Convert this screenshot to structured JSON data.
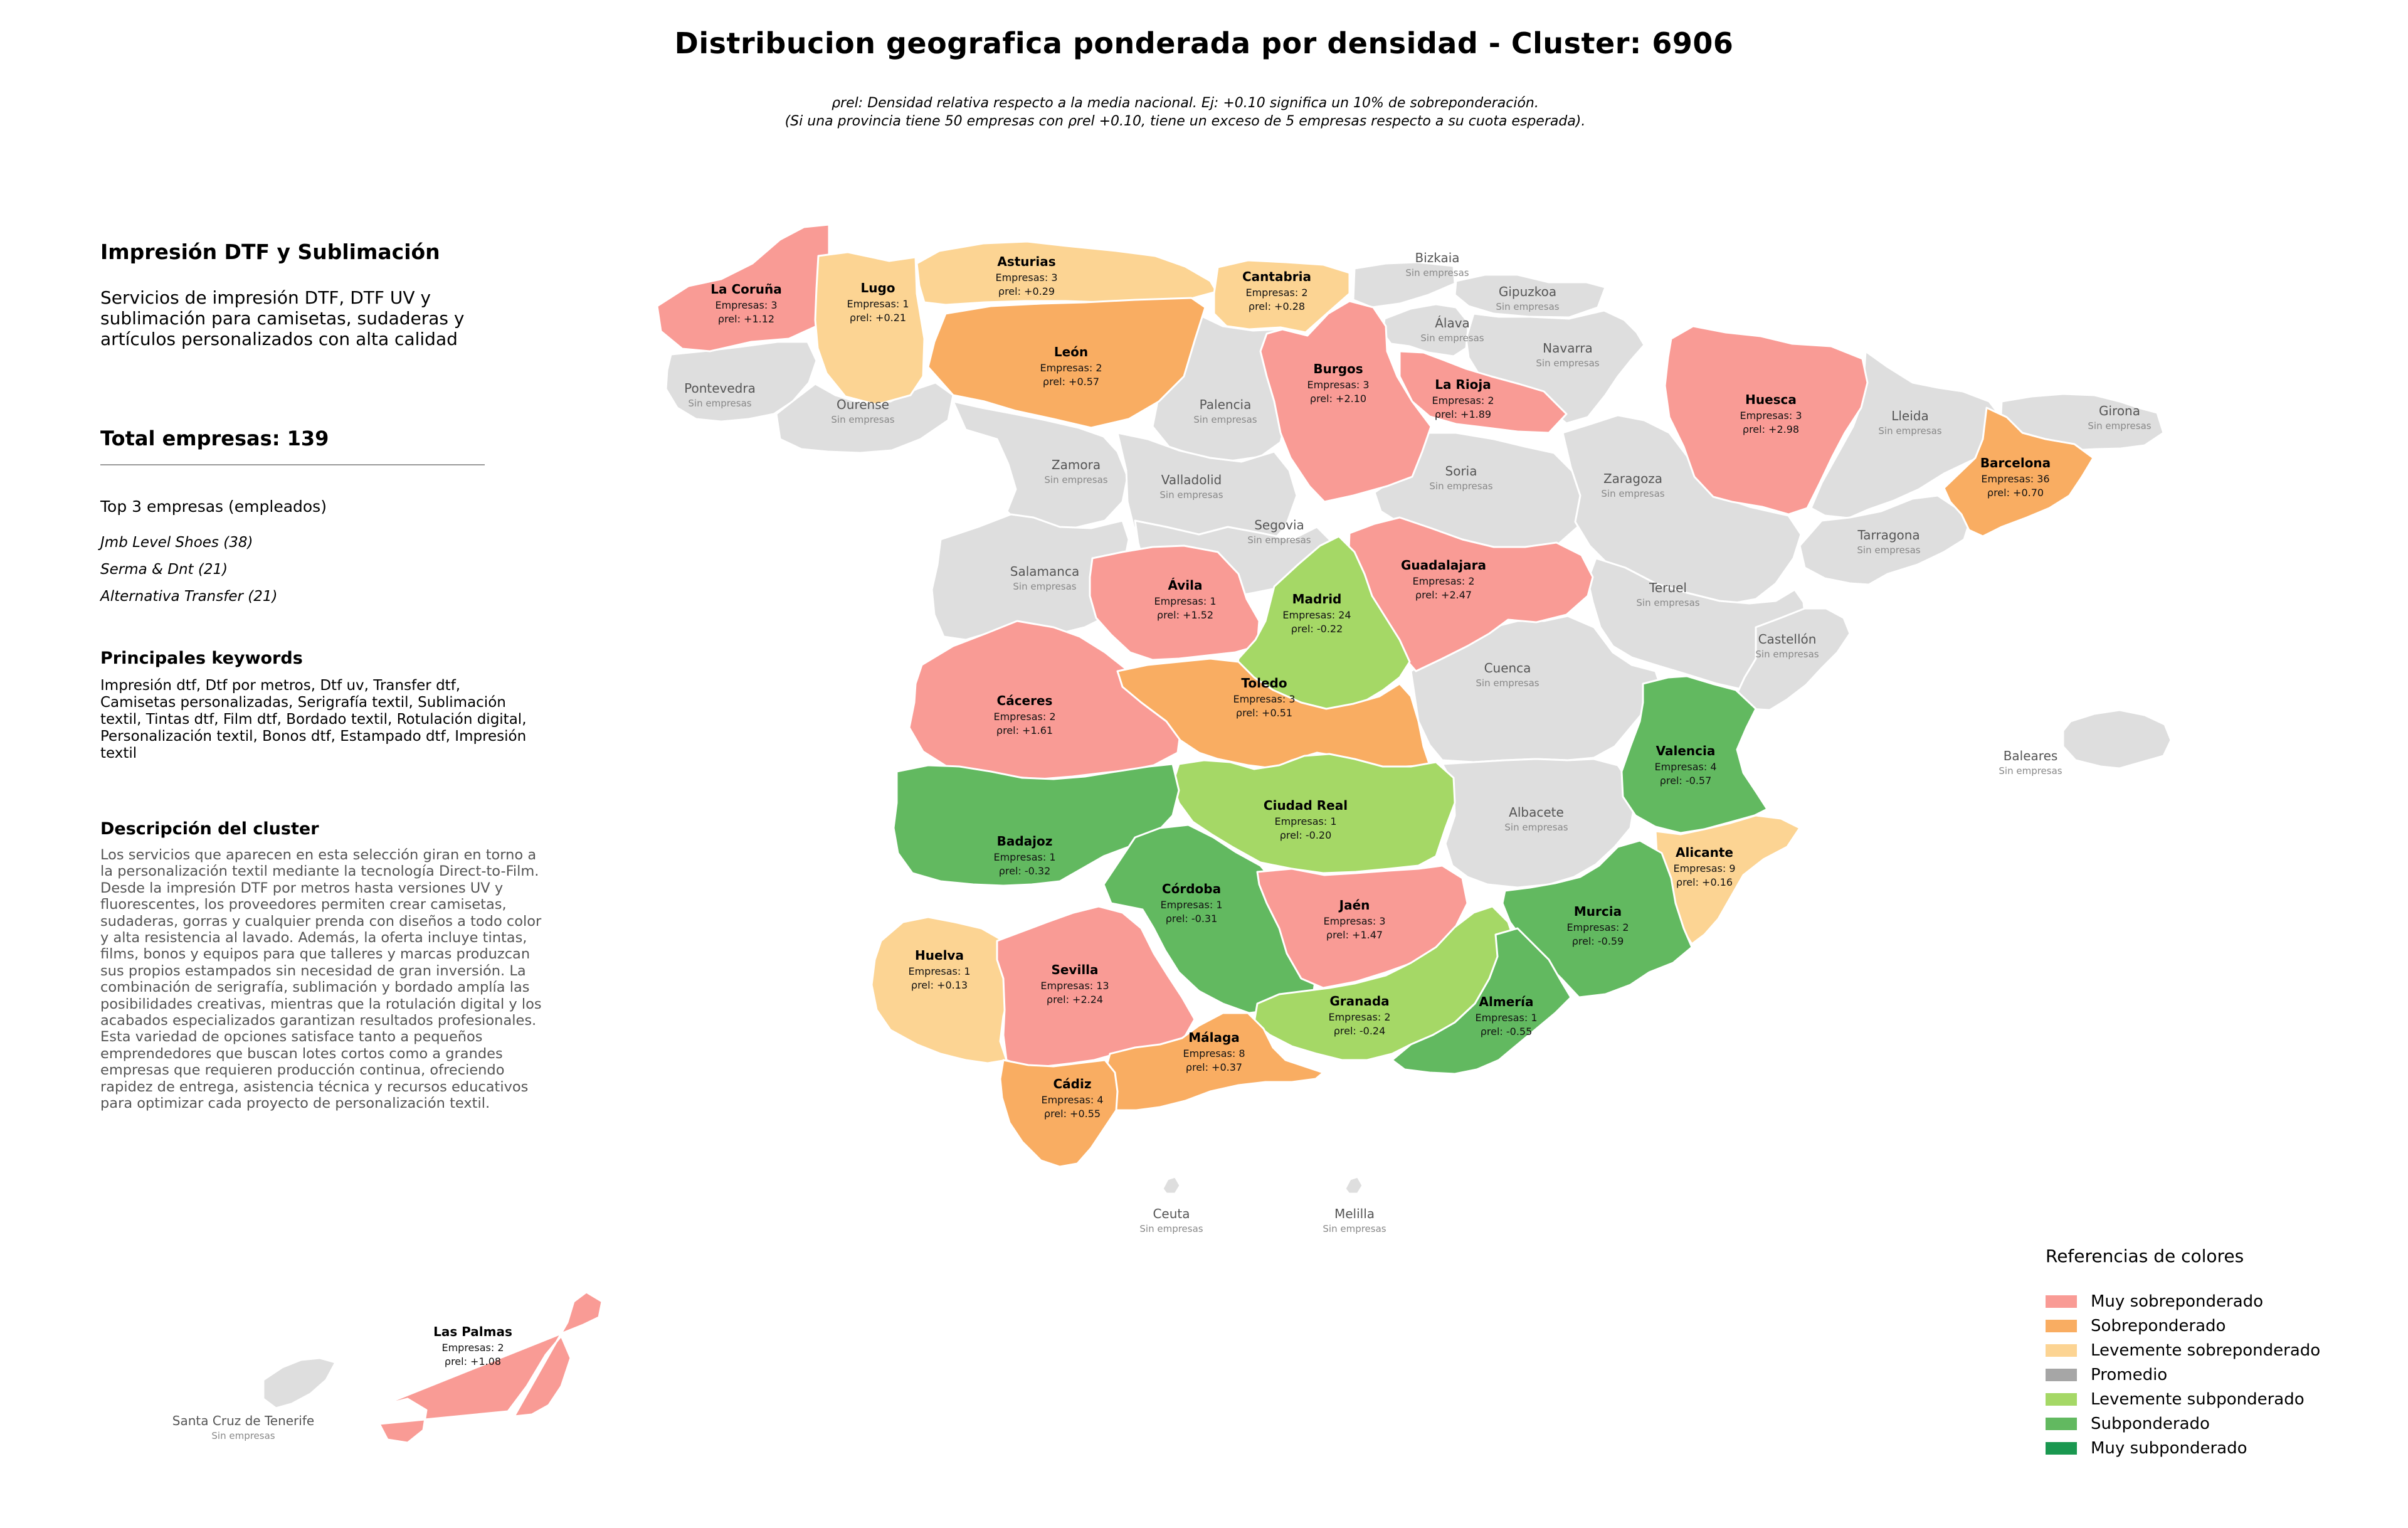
{
  "title": "Distribucion geografica ponderada por densidad - Cluster: 6906",
  "subtitle": {
    "line1": "ρrel: Densidad relativa respecto a la media nacional. Ej: +0.10 significa un 10% de sobreponderación.",
    "line2": "(Si una provincia tiene 50 empresas con ρrel +0.10, tiene un exceso de 5 empresas respecto a su cuota esperada)."
  },
  "sidebar": {
    "heading": "Impresión DTF y Sublimación",
    "description": "Servicios de impresión DTF, DTF UV y sublimación para camisetas, sudaderas y artículos personalizados con alta calidad",
    "total": "Total empresas: 139",
    "top3_title": "Top 3 empresas (empleados)",
    "top3": [
      "Jmb Level Shoes (38)",
      "Serma & Dnt (21)",
      "Alternativa Transfer (21)"
    ],
    "keywords_title": "Principales keywords",
    "keywords": "Impresión dtf, Dtf por metros, Dtf uv, Transfer dtf, Camisetas personalizadas, Serigrafía textil, Sublimación textil, Tintas dtf, Film dtf, Bordado textil, Rotulación digital, Personalización textil, Bonos dtf, Estampado dtf, Impresión textil",
    "cluster_desc_title": "Descripción del cluster",
    "cluster_desc": "Los servicios que aparecen en esta selección giran en torno a la personalización textil mediante la tecnología Direct-to-Film. Desde la impresión DTF por metros hasta versiones UV y fluorescentes, los proveedores permiten crear camisetas, sudaderas, gorras y cualquier prenda con diseños a todo color y alta resistencia al lavado. Además, la oferta incluye tintas, films, bonos y equipos para que talleres y marcas produzcan sus propios estampados sin necesidad de gran inversión. La combinación de serigrafía, sublimación y bordado amplía las posibilidades creativas, mientras que la rotulación digital y los acabados especializados garantizan resultados profesionales. Esta variedad de opciones satisface tanto a pequeños emprendedores que buscan lotes cortos como a grandes empresas que requieren producción continua, ofreciendo rapidez de entrega, asistencia técnica y recursos educativos para optimizar cada proyecto de personalización textil."
  },
  "legend": {
    "title": "Referencias de colores",
    "items": [
      {
        "label": "Muy sobreponderado",
        "color": "#f99b95"
      },
      {
        "label": "Sobreponderado",
        "color": "#f9ad62"
      },
      {
        "label": "Levemente sobreponderado",
        "color": "#fcd493"
      },
      {
        "label": "Promedio",
        "color": "#a6a6a6"
      },
      {
        "label": "Levemente subponderado",
        "color": "#a5d866"
      },
      {
        "label": "Subponderado",
        "color": "#62b960"
      },
      {
        "label": "Muy subponderado",
        "color": "#1a9850"
      }
    ]
  },
  "no_data_color": "#dedede",
  "map_data": {
    "provinces": [
      {
        "name": "La Coruña",
        "empresas": "Empresas: 3",
        "rho": "ρrel: +1.12",
        "level": "Muy sobreponderado"
      },
      {
        "name": "Lugo",
        "empresas": "Empresas: 1",
        "rho": "ρrel: +0.21",
        "level": "Levemente sobreponderado"
      },
      {
        "name": "Asturias",
        "empresas": "Empresas: 3",
        "rho": "ρrel: +0.29",
        "level": "Levemente sobreponderado"
      },
      {
        "name": "Cantabria",
        "empresas": "Empresas: 2",
        "rho": "ρrel: +0.28",
        "level": "Levemente sobreponderado"
      },
      {
        "name": "León",
        "empresas": "Empresas: 2",
        "rho": "ρrel: +0.57",
        "level": "Sobreponderado"
      },
      {
        "name": "Burgos",
        "empresas": "Empresas: 3",
        "rho": "ρrel: +2.10",
        "level": "Muy sobreponderado"
      },
      {
        "name": "La Rioja",
        "empresas": "Empresas: 2",
        "rho": "ρrel: +1.89",
        "level": "Muy sobreponderado"
      },
      {
        "name": "Huesca",
        "empresas": "Empresas: 3",
        "rho": "ρrel: +2.98",
        "level": "Muy sobreponderado"
      },
      {
        "name": "Barcelona",
        "empresas": "Empresas: 36",
        "rho": "ρrel: +0.70",
        "level": "Sobreponderado"
      },
      {
        "name": "Guadalajara",
        "empresas": "Empresas: 2",
        "rho": "ρrel: +2.47",
        "level": "Muy sobreponderado"
      },
      {
        "name": "Ávila",
        "empresas": "Empresas: 1",
        "rho": "ρrel: +1.52",
        "level": "Muy sobreponderado"
      },
      {
        "name": "Madrid",
        "empresas": "Empresas: 24",
        "rho": "ρrel: -0.22",
        "level": "Levemente subponderado"
      },
      {
        "name": "Cáceres",
        "empresas": "Empresas: 2",
        "rho": "ρrel: +1.61",
        "level": "Muy sobreponderado"
      },
      {
        "name": "Toledo",
        "empresas": "Empresas: 3",
        "rho": "ρrel: +0.51",
        "level": "Sobreponderado"
      },
      {
        "name": "Valencia",
        "empresas": "Empresas: 4",
        "rho": "ρrel: -0.57",
        "level": "Subponderado"
      },
      {
        "name": "Ciudad Real",
        "empresas": "Empresas: 1",
        "rho": "ρrel: -0.20",
        "level": "Levemente subponderado"
      },
      {
        "name": "Badajoz",
        "empresas": "Empresas: 1",
        "rho": "ρrel: -0.32",
        "level": "Subponderado"
      },
      {
        "name": "Alicante",
        "empresas": "Empresas: 9",
        "rho": "ρrel: +0.16",
        "level": "Levemente sobreponderado"
      },
      {
        "name": "Córdoba",
        "empresas": "Empresas: 1",
        "rho": "ρrel: -0.31",
        "level": "Subponderado"
      },
      {
        "name": "Jaén",
        "empresas": "Empresas: 3",
        "rho": "ρrel: +1.47",
        "level": "Muy sobreponderado"
      },
      {
        "name": "Murcia",
        "empresas": "Empresas: 2",
        "rho": "ρrel: -0.59",
        "level": "Subponderado"
      },
      {
        "name": "Huelva",
        "empresas": "Empresas: 1",
        "rho": "ρrel: +0.13",
        "level": "Levemente sobreponderado"
      },
      {
        "name": "Sevilla",
        "empresas": "Empresas: 13",
        "rho": "ρrel: +2.24",
        "level": "Muy sobreponderado"
      },
      {
        "name": "Granada",
        "empresas": "Empresas: 2",
        "rho": "ρrel: -0.24",
        "level": "Levemente subponderado"
      },
      {
        "name": "Almería",
        "empresas": "Empresas: 1",
        "rho": "ρrel: -0.55",
        "level": "Subponderado"
      },
      {
        "name": "Málaga",
        "empresas": "Empresas: 8",
        "rho": "ρrel: +0.37",
        "level": "Sobreponderado"
      },
      {
        "name": "Cádiz",
        "empresas": "Empresas: 4",
        "rho": "ρrel: +0.55",
        "level": "Sobreponderado"
      },
      {
        "name": "Las Palmas",
        "empresas": "Empresas: 2",
        "rho": "ρrel: +1.08",
        "level": "Muy sobreponderado"
      }
    ],
    "no_data_label": "Sin empresas",
    "no_data": [
      "Bizkaia",
      "Gipuzkoa",
      "Álava",
      "Navarra",
      "Pontevedra",
      "Ourense",
      "Palencia",
      "Lleida",
      "Girona",
      "Zamora",
      "Valladolid",
      "Soria",
      "Zaragoza",
      "Segovia",
      "Tarragona",
      "Salamanca",
      "Teruel",
      "Castellón",
      "Cuenca",
      "Baleares",
      "Albacete",
      "Ceuta",
      "Melilla",
      "Santa Cruz de Tenerife"
    ]
  }
}
